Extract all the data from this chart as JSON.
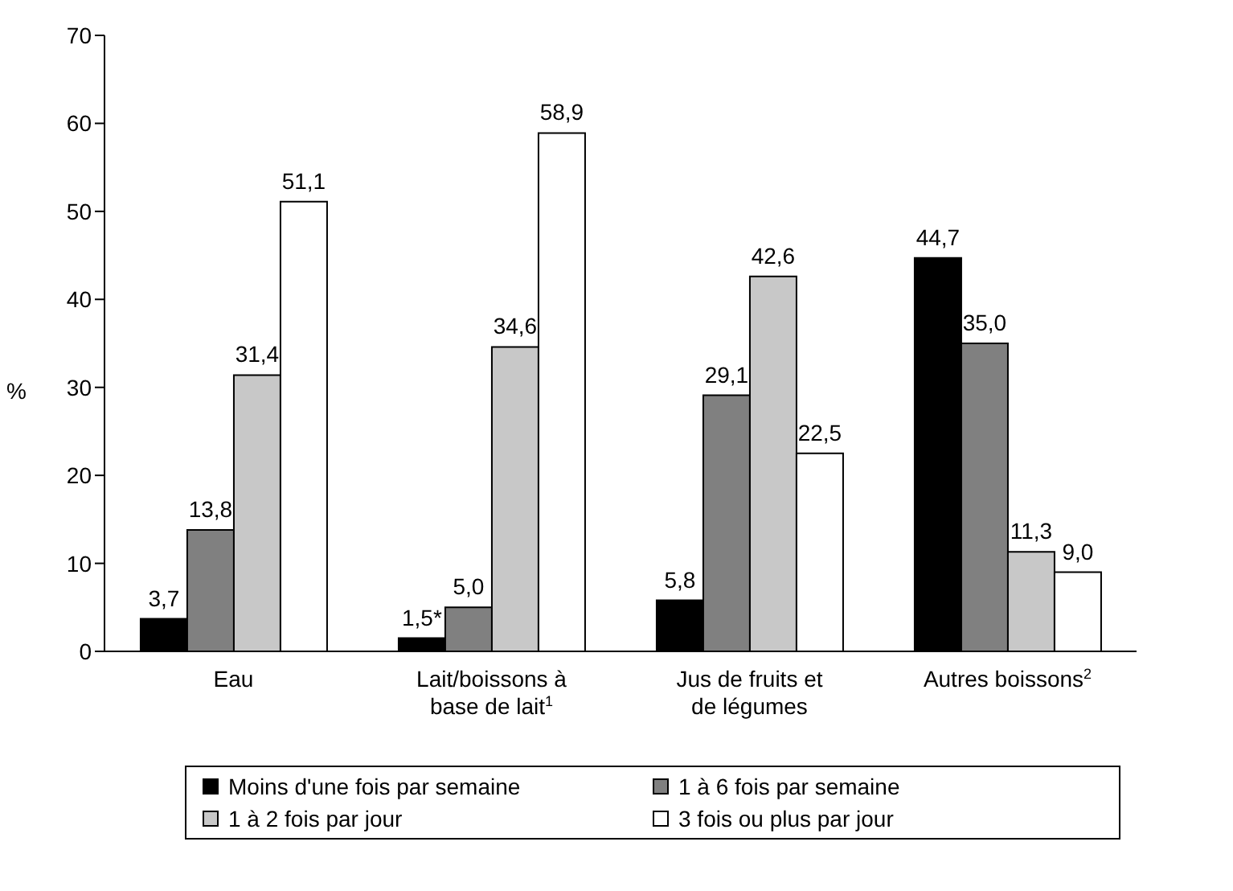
{
  "chart_data": {
    "type": "bar",
    "ylabel": "%",
    "categories": [
      "Eau",
      "Lait/boissons à base de lait$^{1}$",
      "Jus de fruits et de légumes",
      "Autres boissons$^{2}$"
    ],
    "series": [
      {
        "name": "Moins d'une fois par semaine",
        "color": "#000000",
        "values": [
          3.7,
          1.5,
          5.8,
          44.7
        ],
        "value_labels": [
          "3,7",
          "1,5*",
          "5,8",
          "44,7"
        ]
      },
      {
        "name": "1 à 6 fois par semaine",
        "color": "#808080",
        "values": [
          13.8,
          5.0,
          29.1,
          35.0
        ],
        "value_labels": [
          "13,8",
          "5,0",
          "29,1",
          "35,0"
        ]
      },
      {
        "name": "1 à 2 fois par jour",
        "color": "#c8c8c8",
        "values": [
          31.4,
          34.6,
          42.6,
          11.3
        ],
        "value_labels": [
          "31,4",
          "34,6",
          "42,6",
          "11,3"
        ]
      },
      {
        "name": "3 fois ou plus par jour",
        "color": "#ffffff",
        "values": [
          51.1,
          58.9,
          22.5,
          9.0
        ],
        "value_labels": [
          "51,1",
          "58,9",
          "22,5",
          "9,0"
        ]
      }
    ],
    "ylim": [
      0,
      70
    ],
    "yticks": [
      0,
      10,
      20,
      30,
      40,
      50,
      60,
      70
    ],
    "legend": "bottom"
  }
}
